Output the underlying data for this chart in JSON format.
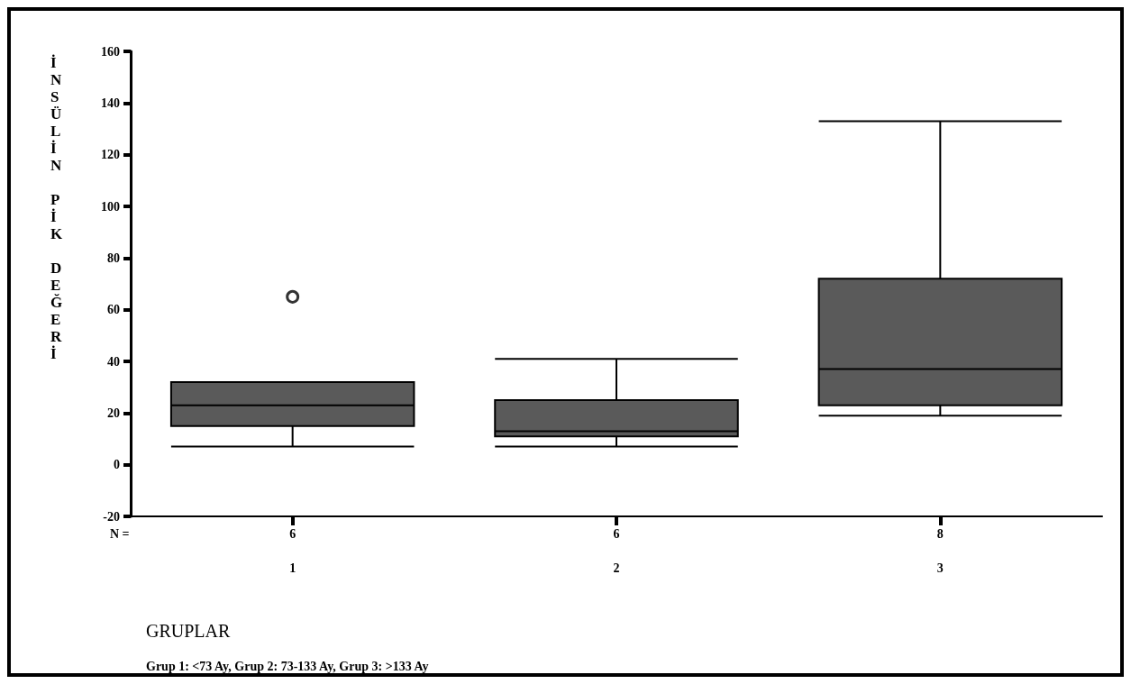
{
  "chart_data": {
    "type": "box",
    "xlabel": "GRUPLAR",
    "ylabel": "İNSÜLİN PİK DEĞERİ",
    "categories": [
      "1",
      "2",
      "3"
    ],
    "series": [
      {
        "color": "#5a5a5a",
        "boxes": [
          {
            "low": 7,
            "q1": 15,
            "median": 23,
            "q3": 32,
            "high": 32,
            "outliers": [
              65
            ]
          },
          {
            "low": 7,
            "q1": 11,
            "median": 13,
            "q3": 25,
            "high": 41
          },
          {
            "low": 19,
            "q1": 23,
            "median": 37,
            "q3": 72,
            "high": 133
          }
        ]
      }
    ],
    "ylim": [
      -20,
      160
    ],
    "yticks": [
      -20,
      0,
      20,
      40,
      60,
      80,
      100,
      120,
      140,
      160
    ],
    "annotations": [
      "N =",
      "6",
      "6",
      "8",
      "Grup 1: <73 Ay, Grup 2: 73-133 Ay, Grup 3: >133 Ay"
    ]
  }
}
